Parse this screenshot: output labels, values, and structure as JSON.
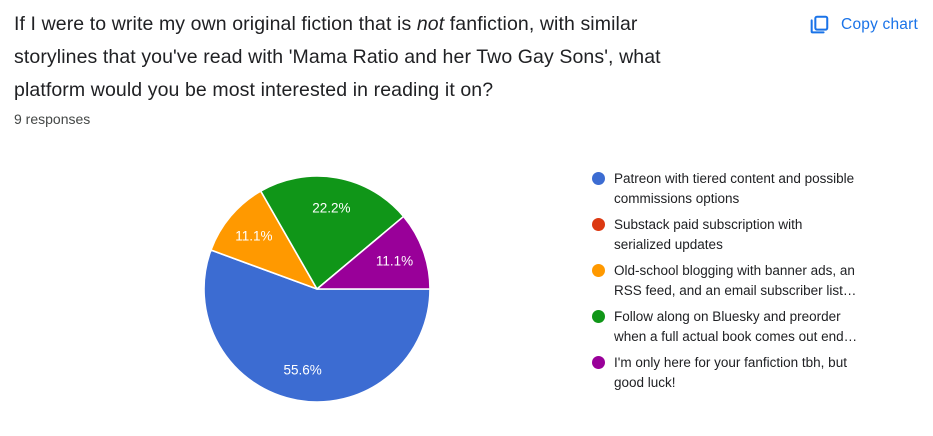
{
  "header": {
    "title_pre": "If I were to write my own original fiction that is ",
    "title_italic": "not",
    "title_post": " fanfiction, with similar storylines that you've read with 'Mama Ratio and her Two Gay Sons', what platform would you be most interested in reading it on?",
    "responses_count": "9 responses"
  },
  "toolbar": {
    "copy_chart_label": "Copy chart",
    "accent_color": "#1a73e8"
  },
  "chart_data": {
    "type": "pie",
    "title": "If I were to write my own original fiction that is not fanfiction, with similar storylines that you've read with 'Mama Ratio and her Two Gay Sons', what platform would you be most interested in reading it on?",
    "total_responses": 9,
    "start_angle_deg": 0,
    "direction": "clockwise",
    "legend_position": "right",
    "slice_label_style": "percent-white-inside",
    "slice_border_color": "#ffffff",
    "series": [
      {
        "label": "Patreon with tiered content and possible commissions options",
        "legend_lines": [
          "Patreon with tiered content and possible",
          "commissions options"
        ],
        "color": "#3c6cd2",
        "count": 5,
        "percent": 55.6,
        "percent_label": "55.6%"
      },
      {
        "label": "Substack paid subscription with serialized updates",
        "legend_lines": [
          "Substack paid subscription with",
          "serialized updates"
        ],
        "color": "#dc3912",
        "count": 0,
        "percent": 0,
        "percent_label": ""
      },
      {
        "label": "Old-school blogging with banner ads, an RSS feed, and an email subscriber list…",
        "legend_lines": [
          "Old-school blogging with banner ads, an",
          "RSS feed, and an email subscriber list…"
        ],
        "color": "#ff9900",
        "count": 1,
        "percent": 11.1,
        "percent_label": "11.1%"
      },
      {
        "label": "Follow along on Bluesky and preorder when a full actual book comes out end…",
        "legend_lines": [
          "Follow along on Bluesky and preorder",
          "when a full actual book comes out end…"
        ],
        "color": "#109618",
        "count": 2,
        "percent": 22.2,
        "percent_label": "22.2%"
      },
      {
        "label": "I'm only here for your fanfiction tbh, but good luck!",
        "legend_lines": [
          "I'm only here for your fanfiction tbh, but",
          "good luck!"
        ],
        "color": "#990099",
        "count": 1,
        "percent": 11.1,
        "percent_label": "11.1%"
      }
    ]
  }
}
